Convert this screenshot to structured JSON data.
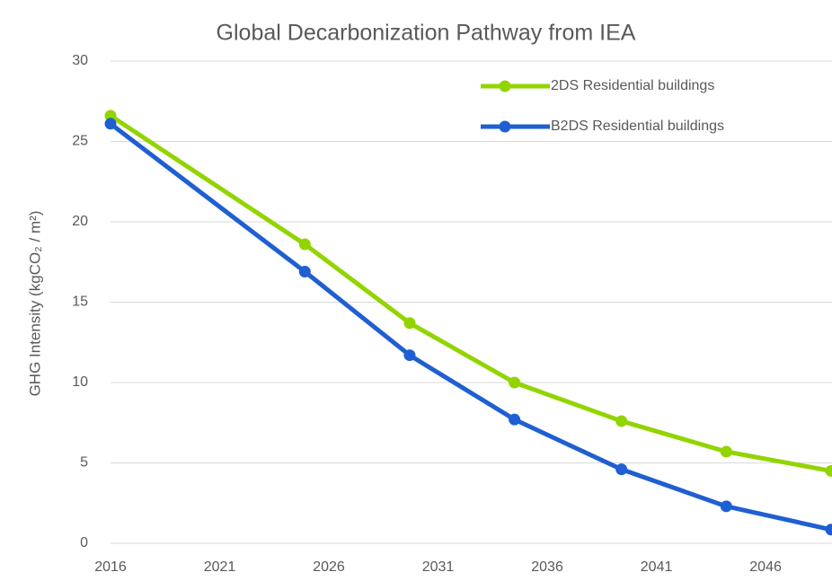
{
  "chart_data": {
    "type": "line",
    "title": "Global Decarbonization Pathway from IEA",
    "y_label": "GHG Intensity (kgCO₂ / m²)",
    "x": [
      2016,
      2024.9,
      2029.7,
      2034.5,
      2039.4,
      2044.2,
      2049
    ],
    "series": [
      {
        "name": "2DS Residential buildings",
        "color": "#92d400",
        "values": [
          26.6,
          18.6,
          13.7,
          10.0,
          7.6,
          5.7,
          4.5
        ]
      },
      {
        "name": "B2DS Residential buildings",
        "color": "#1f5fd1",
        "values": [
          26.1,
          16.9,
          11.7,
          7.7,
          4.6,
          2.3,
          0.85
        ]
      }
    ],
    "xlim": [
      2016,
      2049
    ],
    "xticks": [
      2016,
      2021,
      2026,
      2031,
      2036,
      2041,
      2046
    ],
    "ylim": [
      0,
      30
    ],
    "yticks": [
      0,
      5,
      10,
      15,
      20,
      25,
      30
    ],
    "grid": true,
    "legend": "top-right"
  }
}
